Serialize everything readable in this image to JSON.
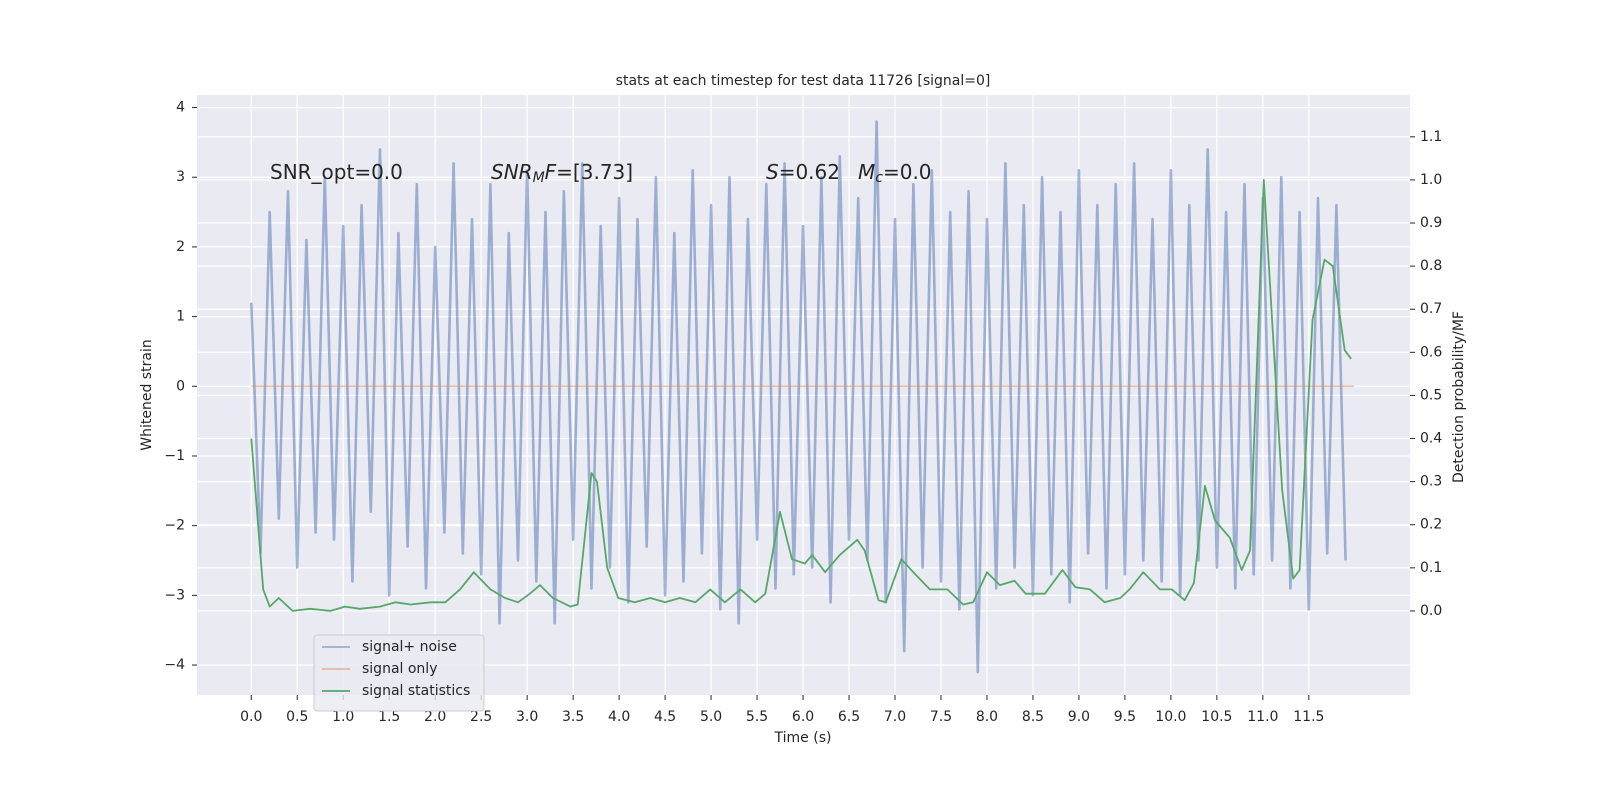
{
  "chart_data": {
    "type": "line",
    "title": "stats at each timestep for test data 11726 [signal=0]",
    "xlabel": "Time (s)",
    "ylabel": "Whitened strain",
    "y2label": "Detection probability/MF",
    "annotations": [
      {
        "parts": [
          "SNR_opt=0.0"
        ]
      },
      {
        "parts": [
          "SNR",
          "M",
          "F",
          "=[3.73]"
        ]
      },
      {
        "parts": [
          "S",
          "=0.62",
          "M",
          "c",
          "=0.0"
        ]
      }
    ],
    "xlim": [
      -0.59,
      12.6
    ],
    "ylim": [
      -4.43,
      4.18
    ],
    "y2lim": [
      -0.195,
      1.197
    ],
    "xticks": [
      {
        "value": 0,
        "label": "0.0"
      },
      0.5,
      {
        "value": 1,
        "label": "1.0"
      },
      1.5,
      {
        "value": 2,
        "label": "2.0"
      },
      2.5,
      {
        "value": 3,
        "label": "3.0"
      },
      3.5,
      {
        "value": 4,
        "label": "4.0"
      },
      4.5,
      {
        "value": 5,
        "label": "5.0"
      },
      5.5,
      {
        "value": 6,
        "label": "6.0"
      },
      6.5,
      {
        "value": 7,
        "label": "7.0"
      },
      7.5,
      {
        "value": 8,
        "label": "8.0"
      },
      8.5,
      {
        "value": 9,
        "label": "9.0"
      },
      9.5,
      {
        "value": 10,
        "label": "10.0"
      },
      10.5,
      {
        "value": 11,
        "label": "11.0"
      },
      11.5
    ],
    "yticks": [
      {
        "value": -4,
        "label": "−4"
      },
      {
        "value": -3,
        "label": "−3"
      },
      {
        "value": -2,
        "label": "−2"
      },
      {
        "value": -1,
        "label": "−1"
      },
      0,
      1,
      2,
      3,
      4
    ],
    "y2ticks": [
      {
        "value": 0,
        "label": "0.0"
      },
      0.1,
      0.2,
      0.3,
      0.4,
      0.5,
      0.6,
      0.7,
      0.8,
      0.9,
      {
        "value": 1,
        "label": "1.0"
      },
      1.1
    ],
    "grid": true,
    "legend": "lower left",
    "series": [
      {
        "name": "signal+ noise",
        "color": "#4c72b0",
        "x": [
          0.0,
          0.1,
          0.2,
          0.3,
          0.4,
          0.5,
          0.6,
          0.7,
          0.8,
          0.9,
          1.0,
          1.1,
          1.2,
          1.3,
          1.4,
          1.5,
          1.6,
          1.7,
          1.8,
          1.9,
          2.0,
          2.1,
          2.2,
          2.3,
          2.4,
          2.5,
          2.6,
          2.7,
          2.8,
          2.9,
          3.0,
          3.1,
          3.2,
          3.3,
          3.4,
          3.5,
          3.6,
          3.7,
          3.8,
          3.9,
          4.0,
          4.1,
          4.2,
          4.3,
          4.4,
          4.5,
          4.6,
          4.7,
          4.8,
          4.9,
          5.0,
          5.1,
          5.2,
          5.3,
          5.4,
          5.5,
          5.6,
          5.7,
          5.8,
          5.9,
          6.0,
          6.1,
          6.2,
          6.3,
          6.4,
          6.5,
          6.6,
          6.7,
          6.8,
          6.9,
          7.0,
          7.1,
          7.2,
          7.3,
          7.4,
          7.5,
          7.6,
          7.7,
          7.8,
          7.9,
          8.0,
          8.1,
          8.2,
          8.3,
          8.4,
          8.5,
          8.6,
          8.7,
          8.8,
          8.9,
          9.0,
          9.1,
          9.2,
          9.3,
          9.4,
          9.5,
          9.6,
          9.7,
          9.8,
          9.9,
          10.0,
          10.1,
          10.2,
          10.3,
          10.4,
          10.5,
          10.6,
          10.7,
          10.8,
          10.9,
          11.0,
          11.1,
          11.2,
          11.3,
          11.4,
          11.5,
          11.6,
          11.7,
          11.8,
          11.9
        ],
        "values": [
          1.2,
          -2.4,
          2.5,
          -1.9,
          2.8,
          -2.6,
          2.1,
          -2.1,
          3.0,
          -2.2,
          2.3,
          -2.8,
          2.6,
          -1.8,
          3.4,
          -3.0,
          2.2,
          -2.3,
          2.9,
          -2.9,
          2.0,
          -2.1,
          3.2,
          -2.4,
          2.4,
          -2.7,
          2.9,
          -3.4,
          2.2,
          -2.5,
          3.1,
          -2.8,
          2.5,
          -3.4,
          2.8,
          -2.2,
          3.2,
          -2.9,
          2.3,
          -2.6,
          2.7,
          -3.1,
          2.4,
          -2.3,
          3.0,
          -3.0,
          2.2,
          -2.8,
          3.1,
          -2.4,
          2.6,
          -3.2,
          3.0,
          -3.4,
          2.4,
          -2.2,
          2.9,
          -2.9,
          3.2,
          -2.7,
          2.3,
          -2.6,
          3.0,
          -3.1,
          3.3,
          -2.2,
          2.7,
          -2.5,
          3.8,
          -3.1,
          2.4,
          -3.8,
          2.9,
          -2.6,
          3.1,
          -2.8,
          2.5,
          -3.2,
          2.8,
          -4.1,
          2.4,
          -2.9,
          3.2,
          -2.6,
          2.6,
          -3.0,
          3.0,
          -2.7,
          2.5,
          -3.1,
          3.1,
          -2.4,
          2.6,
          -2.9,
          2.9,
          -2.7,
          3.2,
          -2.5,
          2.4,
          -2.8,
          3.1,
          -3.0,
          2.6,
          -2.5,
          3.4,
          -2.6,
          2.5,
          -2.9,
          2.9,
          -2.7,
          2.7,
          -2.5,
          3.0,
          -2.9,
          2.5,
          -3.2,
          2.7,
          -2.4,
          2.6,
          -2.5
        ]
      },
      {
        "name": "signal only",
        "color": "#dd8452",
        "x": [
          0,
          11.99
        ],
        "values": [
          0,
          0
        ]
      },
      {
        "name": "signal statistics",
        "color": "#55a868",
        "axis": "y2",
        "x": [
          0,
          0.13,
          0.2,
          0.3,
          0.45,
          0.64,
          0.86,
          1.02,
          1.18,
          1.4,
          1.57,
          1.73,
          1.95,
          2.11,
          2.27,
          2.42,
          2.6,
          2.76,
          2.9,
          3.03,
          3.14,
          3.28,
          3.47,
          3.55,
          3.7,
          3.76,
          3.87,
          3.99,
          4.17,
          4.34,
          4.5,
          4.66,
          4.83,
          4.99,
          5.15,
          5.32,
          5.48,
          5.59,
          5.75,
          5.88,
          6.02,
          6.1,
          6.24,
          6.4,
          6.59,
          6.67,
          6.82,
          6.9,
          7.07,
          7.22,
          7.38,
          7.57,
          7.74,
          7.85,
          8.0,
          8.14,
          8.3,
          8.42,
          8.63,
          8.82,
          8.96,
          9.12,
          9.28,
          9.45,
          9.55,
          9.7,
          9.88,
          10.01,
          10.15,
          10.25,
          10.37,
          10.48,
          10.64,
          10.77,
          10.86,
          11.01,
          11.21,
          11.33,
          11.4,
          11.54,
          11.67,
          11.76,
          11.89,
          11.96
        ],
        "values": [
          0.4,
          0.05,
          0.01,
          0.03,
          0.0,
          0.005,
          0.0,
          0.01,
          0.005,
          0.01,
          0.02,
          0.015,
          0.02,
          0.02,
          0.05,
          0.09,
          0.05,
          0.03,
          0.02,
          0.04,
          0.06,
          0.03,
          0.01,
          0.015,
          0.32,
          0.3,
          0.1,
          0.03,
          0.02,
          0.03,
          0.02,
          0.03,
          0.02,
          0.05,
          0.02,
          0.05,
          0.02,
          0.04,
          0.23,
          0.12,
          0.11,
          0.13,
          0.09,
          0.13,
          0.165,
          0.14,
          0.025,
          0.02,
          0.12,
          0.085,
          0.05,
          0.05,
          0.015,
          0.02,
          0.09,
          0.06,
          0.07,
          0.04,
          0.04,
          0.095,
          0.055,
          0.05,
          0.02,
          0.03,
          0.05,
          0.09,
          0.05,
          0.05,
          0.025,
          0.065,
          0.29,
          0.21,
          0.17,
          0.095,
          0.14,
          1.0,
          0.28,
          0.075,
          0.095,
          0.675,
          0.815,
          0.8,
          0.605,
          0.585
        ]
      }
    ]
  }
}
